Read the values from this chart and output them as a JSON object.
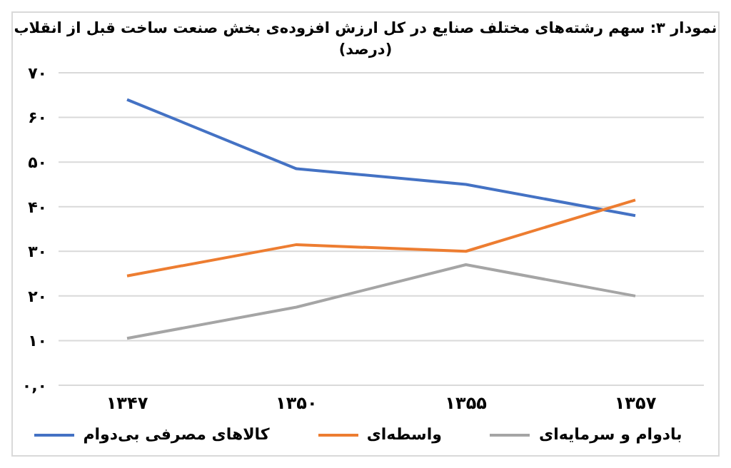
{
  "chart_data": {
    "type": "line",
    "title": "نمودار ۳: سهم رشته‌های مختلف صنایع در کل ارزش افزوده‌ی بخش صنعت ساخت قبل از انقلاب",
    "subtitle": "(درصد)",
    "categories": [
      "۱۳۴۷",
      "۱۳۵۰",
      "۱۳۵۵",
      "۱۳۵۷"
    ],
    "series": [
      {
        "name": "کالاهای مصرفی بی‌دوام",
        "color": "#4472c4",
        "values": [
          64,
          48.5,
          45,
          38
        ]
      },
      {
        "name": "واسطه‌ای",
        "color": "#ed7d31",
        "values": [
          24.5,
          31.5,
          30,
          41.5
        ]
      },
      {
        "name": "بادوام و سرمایه‌ای",
        "color": "#a5a5a5",
        "values": [
          10.5,
          17.5,
          27,
          20
        ]
      }
    ],
    "ylim": [
      0,
      70
    ],
    "yticks": [
      {
        "value": 0,
        "label": "۰,۰"
      },
      {
        "value": 10,
        "label": "۱۰"
      },
      {
        "value": 20,
        "label": "۲۰"
      },
      {
        "value": 30,
        "label": "۳۰"
      },
      {
        "value": 40,
        "label": "۴۰"
      },
      {
        "value": 50,
        "label": "۵۰"
      },
      {
        "value": 60,
        "label": "۶۰"
      },
      {
        "value": 70,
        "label": "۷۰"
      }
    ],
    "grid": "y",
    "legend": "bottom",
    "marker": "none",
    "line_style": "solid"
  }
}
